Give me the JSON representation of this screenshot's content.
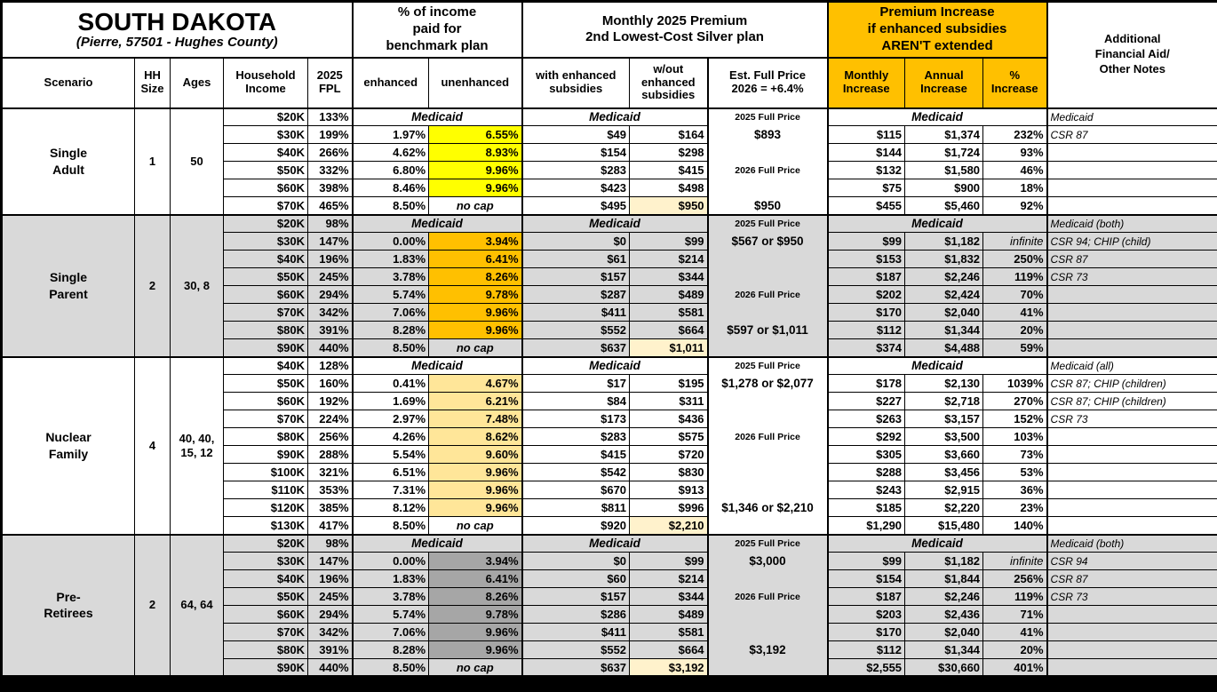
{
  "title": {
    "state": "SOUTH DAKOTA",
    "location": "(Pierre, 57501 - Hughes County)"
  },
  "header_groups": {
    "income_pct": "% of income\npaid for\nbenchmark plan",
    "premium": "Monthly 2025 Premium\n2nd Lowest-Cost Silver plan",
    "increase": "Premium Increase\nif enhanced subsidies\nAREN'T extended",
    "notes": "Additional\nFinancial Aid/\nOther Notes"
  },
  "column_headers": {
    "scenario": "Scenario",
    "hh_size": "HH\nSize",
    "ages": "Ages",
    "income": "Household\nIncome",
    "fpl": "2025\nFPL",
    "enhanced": "enhanced",
    "unenhanced": "unenhanced",
    "with_sub": "with enhanced\nsubsidies",
    "wo_sub": "w/out\nenhanced\nsubsidies",
    "full_price": "Est. Full Price\n2026 = +6.4%",
    "monthly": "Monthly\nIncrease",
    "annual": "Annual\nIncrease",
    "pct": "%\nIncrease"
  },
  "labels": {
    "medicaid": "Medicaid",
    "no_cap": "no cap"
  },
  "palette": {
    "header_orange": "#FFC000",
    "pale_yellow": "#FFF2CC",
    "block_gray": "#D9D9D9",
    "single_adult_highlight": "#FFFF00",
    "single_parent_highlight": "#FFC000",
    "nuclear_family_highlight": "#FFE699",
    "pre_retirees_highlight": "#A6A6A6"
  },
  "chart_data": {
    "type": "table",
    "title": "SOUTH DAKOTA",
    "subtitle": "(Pierre, 57501 - Hughes County)",
    "scenarios": [
      {
        "name": "Single\nAdult",
        "hh_size": "1",
        "ages": "50",
        "shaded": false,
        "highlight": "#FFFF00",
        "rows": [
          {
            "income": "$20K",
            "fpl": "133%",
            "medicaid": true,
            "fp": "2025 Full Price",
            "fp_style": "label",
            "note": "Medicaid"
          },
          {
            "income": "$30K",
            "fpl": "199%",
            "enhanced": "1.97%",
            "unenhanced": "6.55%",
            "with_sub": "$49",
            "wo_sub": "$164",
            "fp": "$893",
            "fp_style": "value",
            "monthly": "$115",
            "annual": "$1,374",
            "pct": "232%",
            "note": "CSR 87"
          },
          {
            "income": "$40K",
            "fpl": "266%",
            "enhanced": "4.62%",
            "unenhanced": "8.93%",
            "with_sub": "$154",
            "wo_sub": "$298",
            "fp": "",
            "fp_style": "",
            "monthly": "$144",
            "annual": "$1,724",
            "pct": "93%",
            "note": ""
          },
          {
            "income": "$50K",
            "fpl": "332%",
            "enhanced": "6.80%",
            "unenhanced": "9.96%",
            "with_sub": "$283",
            "wo_sub": "$415",
            "fp": "2026 Full Price",
            "fp_style": "label",
            "monthly": "$132",
            "annual": "$1,580",
            "pct": "46%",
            "note": ""
          },
          {
            "income": "$60K",
            "fpl": "398%",
            "enhanced": "8.46%",
            "unenhanced": "9.96%",
            "with_sub": "$423",
            "wo_sub": "$498",
            "fp": "",
            "fp_style": "",
            "monthly": "$75",
            "annual": "$900",
            "pct": "18%",
            "note": ""
          },
          {
            "income": "$70K",
            "fpl": "465%",
            "enhanced": "8.50%",
            "no_cap": true,
            "with_sub": "$495",
            "wo_sub": "$950",
            "wo_hl": true,
            "fp": "$950",
            "fp_style": "value",
            "monthly": "$455",
            "annual": "$5,460",
            "pct": "92%",
            "note": ""
          }
        ]
      },
      {
        "name": "Single\nParent",
        "hh_size": "2",
        "ages": "30, 8",
        "shaded": true,
        "highlight": "#FFC000",
        "rows": [
          {
            "income": "$20K",
            "fpl": "98%",
            "medicaid": true,
            "fp": "2025 Full Price",
            "fp_style": "label",
            "note": "Medicaid (both)"
          },
          {
            "income": "$30K",
            "fpl": "147%",
            "enhanced": "0.00%",
            "unenhanced": "3.94%",
            "with_sub": "$0",
            "wo_sub": "$99",
            "fp": "$567 or $950",
            "fp_style": "value",
            "monthly": "$99",
            "annual": "$1,182",
            "pct": "infinite",
            "pct_italic": true,
            "note": "CSR 94; CHIP (child)"
          },
          {
            "income": "$40K",
            "fpl": "196%",
            "enhanced": "1.83%",
            "unenhanced": "6.41%",
            "with_sub": "$61",
            "wo_sub": "$214",
            "fp": "",
            "fp_style": "",
            "monthly": "$153",
            "annual": "$1,832",
            "pct": "250%",
            "note": "CSR 87"
          },
          {
            "income": "$50K",
            "fpl": "245%",
            "enhanced": "3.78%",
            "unenhanced": "8.26%",
            "with_sub": "$157",
            "wo_sub": "$344",
            "fp": "",
            "fp_style": "",
            "monthly": "$187",
            "annual": "$2,246",
            "pct": "119%",
            "note": "CSR 73"
          },
          {
            "income": "$60K",
            "fpl": "294%",
            "enhanced": "5.74%",
            "unenhanced": "9.78%",
            "with_sub": "$287",
            "wo_sub": "$489",
            "fp": "2026 Full Price",
            "fp_style": "label",
            "monthly": "$202",
            "annual": "$2,424",
            "pct": "70%",
            "note": ""
          },
          {
            "income": "$70K",
            "fpl": "342%",
            "enhanced": "7.06%",
            "unenhanced": "9.96%",
            "with_sub": "$411",
            "wo_sub": "$581",
            "fp": "",
            "fp_style": "",
            "monthly": "$170",
            "annual": "$2,040",
            "pct": "41%",
            "note": ""
          },
          {
            "income": "$80K",
            "fpl": "391%",
            "enhanced": "8.28%",
            "unenhanced": "9.96%",
            "with_sub": "$552",
            "wo_sub": "$664",
            "fp": "$597 or $1,011",
            "fp_style": "value",
            "monthly": "$112",
            "annual": "$1,344",
            "pct": "20%",
            "note": ""
          },
          {
            "income": "$90K",
            "fpl": "440%",
            "enhanced": "8.50%",
            "no_cap": true,
            "with_sub": "$637",
            "wo_sub": "$1,011",
            "wo_hl": true,
            "fp": "",
            "fp_style": "",
            "monthly": "$374",
            "annual": "$4,488",
            "pct": "59%",
            "note": ""
          }
        ]
      },
      {
        "name": "Nuclear\nFamily",
        "hh_size": "4",
        "ages": "40, 40,\n15, 12",
        "shaded": false,
        "highlight": "#FFE699",
        "rows": [
          {
            "income": "$40K",
            "fpl": "128%",
            "medicaid": true,
            "fp": "2025 Full Price",
            "fp_style": "label",
            "note": "Medicaid (all)"
          },
          {
            "income": "$50K",
            "fpl": "160%",
            "enhanced": "0.41%",
            "unenhanced": "4.67%",
            "with_sub": "$17",
            "wo_sub": "$195",
            "fp": "$1,278 or $2,077",
            "fp_style": "value",
            "monthly": "$178",
            "annual": "$2,130",
            "pct": "1039%",
            "note": "CSR 87; CHIP (children)"
          },
          {
            "income": "$60K",
            "fpl": "192%",
            "enhanced": "1.69%",
            "unenhanced": "6.21%",
            "with_sub": "$84",
            "wo_sub": "$311",
            "fp": "",
            "fp_style": "",
            "monthly": "$227",
            "annual": "$2,718",
            "pct": "270%",
            "note": "CSR 87; CHIP (children)"
          },
          {
            "income": "$70K",
            "fpl": "224%",
            "enhanced": "2.97%",
            "unenhanced": "7.48%",
            "with_sub": "$173",
            "wo_sub": "$436",
            "fp": "",
            "fp_style": "",
            "monthly": "$263",
            "annual": "$3,157",
            "pct": "152%",
            "note": "CSR 73"
          },
          {
            "income": "$80K",
            "fpl": "256%",
            "enhanced": "4.26%",
            "unenhanced": "8.62%",
            "with_sub": "$283",
            "wo_sub": "$575",
            "fp": "2026 Full Price",
            "fp_style": "label",
            "monthly": "$292",
            "annual": "$3,500",
            "pct": "103%",
            "note": ""
          },
          {
            "income": "$90K",
            "fpl": "288%",
            "enhanced": "5.54%",
            "unenhanced": "9.60%",
            "with_sub": "$415",
            "wo_sub": "$720",
            "fp": "",
            "fp_style": "",
            "monthly": "$305",
            "annual": "$3,660",
            "pct": "73%",
            "note": ""
          },
          {
            "income": "$100K",
            "fpl": "321%",
            "enhanced": "6.51%",
            "unenhanced": "9.96%",
            "with_sub": "$542",
            "wo_sub": "$830",
            "fp": "",
            "fp_style": "",
            "monthly": "$288",
            "annual": "$3,456",
            "pct": "53%",
            "note": ""
          },
          {
            "income": "$110K",
            "fpl": "353%",
            "enhanced": "7.31%",
            "unenhanced": "9.96%",
            "with_sub": "$670",
            "wo_sub": "$913",
            "fp": "",
            "fp_style": "",
            "monthly": "$243",
            "annual": "$2,915",
            "pct": "36%",
            "note": ""
          },
          {
            "income": "$120K",
            "fpl": "385%",
            "enhanced": "8.12%",
            "unenhanced": "9.96%",
            "with_sub": "$811",
            "wo_sub": "$996",
            "fp": "$1,346 or $2,210",
            "fp_style": "value",
            "monthly": "$185",
            "annual": "$2,220",
            "pct": "23%",
            "note": ""
          },
          {
            "income": "$130K",
            "fpl": "417%",
            "enhanced": "8.50%",
            "no_cap": true,
            "with_sub": "$920",
            "wo_sub": "$2,210",
            "wo_hl": true,
            "fp": "",
            "fp_style": "",
            "monthly": "$1,290",
            "annual": "$15,480",
            "pct": "140%",
            "note": ""
          }
        ]
      },
      {
        "name": "Pre-\nRetirees",
        "hh_size": "2",
        "ages": "64, 64",
        "shaded": true,
        "highlight": "#A6A6A6",
        "rows": [
          {
            "income": "$20K",
            "fpl": "98%",
            "medicaid": true,
            "fp": "2025 Full Price",
            "fp_style": "label",
            "note": "Medicaid (both)"
          },
          {
            "income": "$30K",
            "fpl": "147%",
            "enhanced": "0.00%",
            "unenhanced": "3.94%",
            "with_sub": "$0",
            "wo_sub": "$99",
            "fp": "$3,000",
            "fp_style": "value",
            "monthly": "$99",
            "annual": "$1,182",
            "pct": "infinite",
            "pct_italic": true,
            "note": "CSR 94"
          },
          {
            "income": "$40K",
            "fpl": "196%",
            "enhanced": "1.83%",
            "unenhanced": "6.41%",
            "with_sub": "$60",
            "wo_sub": "$214",
            "fp": "",
            "fp_style": "",
            "monthly": "$154",
            "annual": "$1,844",
            "pct": "256%",
            "note": "CSR 87"
          },
          {
            "income": "$50K",
            "fpl": "245%",
            "enhanced": "3.78%",
            "unenhanced": "8.26%",
            "with_sub": "$157",
            "wo_sub": "$344",
            "fp": "2026 Full Price",
            "fp_style": "label",
            "monthly": "$187",
            "annual": "$2,246",
            "pct": "119%",
            "note": "CSR 73"
          },
          {
            "income": "$60K",
            "fpl": "294%",
            "enhanced": "5.74%",
            "unenhanced": "9.78%",
            "with_sub": "$286",
            "wo_sub": "$489",
            "fp": "",
            "fp_style": "",
            "monthly": "$203",
            "annual": "$2,436",
            "pct": "71%",
            "note": ""
          },
          {
            "income": "$70K",
            "fpl": "342%",
            "enhanced": "7.06%",
            "unenhanced": "9.96%",
            "with_sub": "$411",
            "wo_sub": "$581",
            "fp": "",
            "fp_style": "",
            "monthly": "$170",
            "annual": "$2,040",
            "pct": "41%",
            "note": ""
          },
          {
            "income": "$80K",
            "fpl": "391%",
            "enhanced": "8.28%",
            "unenhanced": "9.96%",
            "with_sub": "$552",
            "wo_sub": "$664",
            "fp": "$3,192",
            "fp_style": "value",
            "monthly": "$112",
            "annual": "$1,344",
            "pct": "20%",
            "note": ""
          },
          {
            "income": "$90K",
            "fpl": "440%",
            "enhanced": "8.50%",
            "no_cap": true,
            "with_sub": "$637",
            "wo_sub": "$3,192",
            "wo_hl": true,
            "fp": "",
            "fp_style": "",
            "monthly": "$2,555",
            "annual": "$30,660",
            "pct": "401%",
            "note": ""
          }
        ]
      }
    ]
  }
}
